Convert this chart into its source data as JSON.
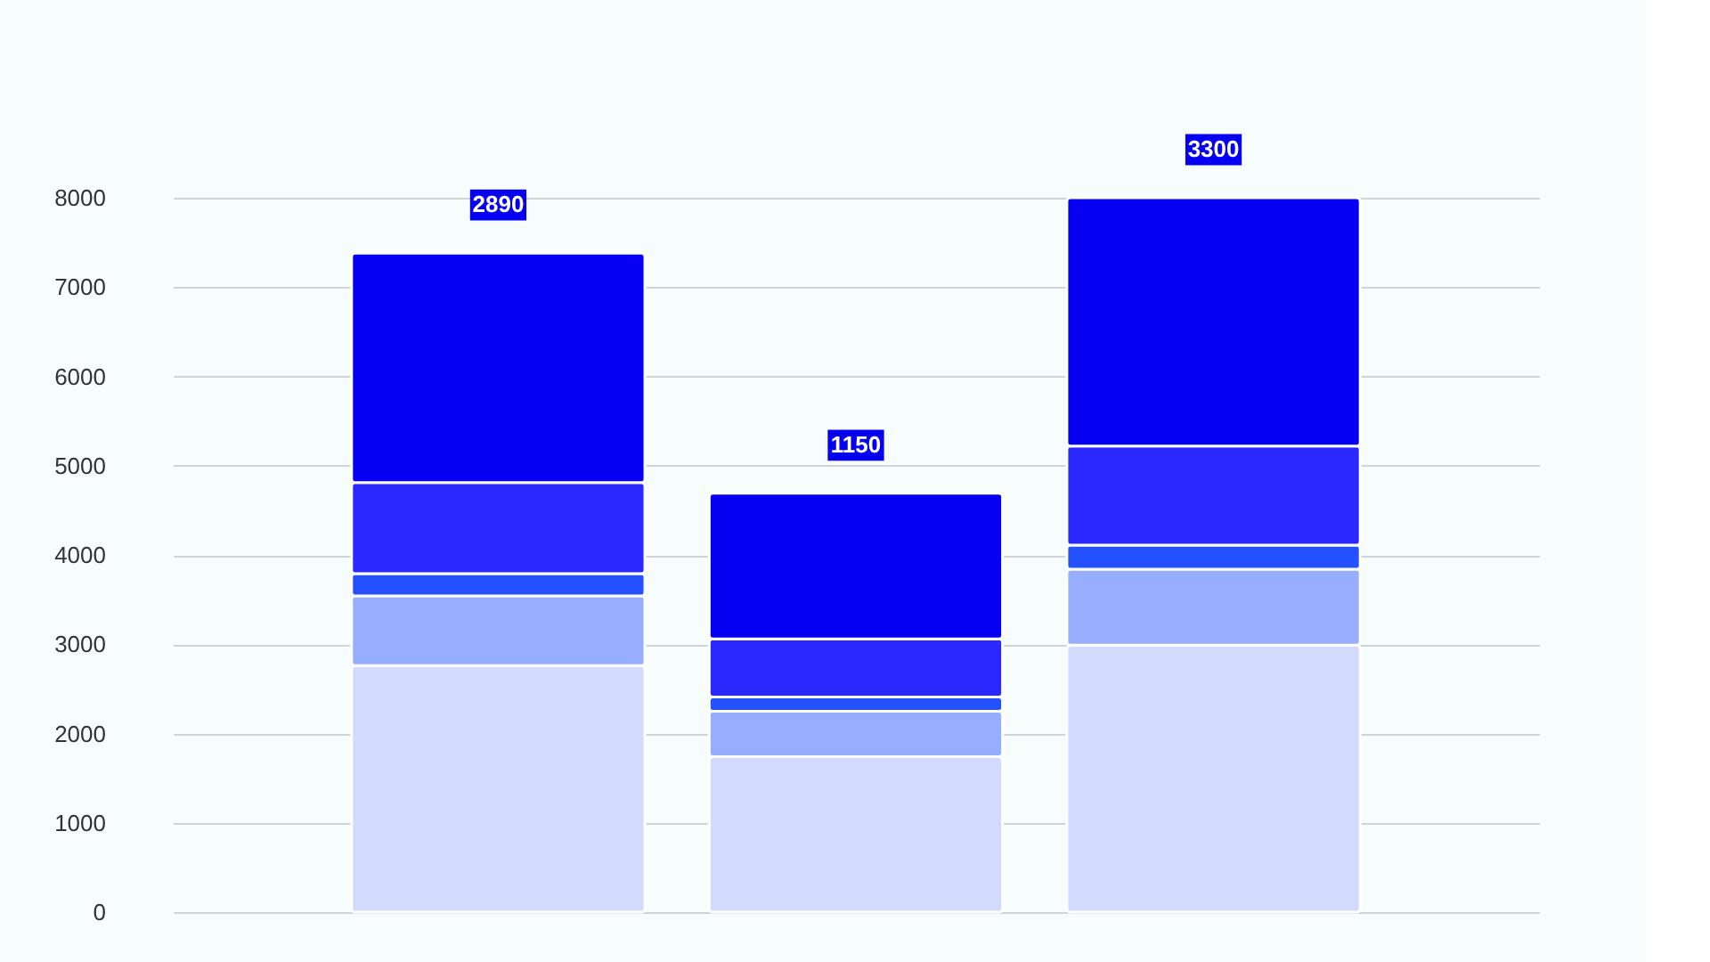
{
  "chart_data": {
    "type": "bar",
    "stacked": true,
    "categories": [
      null,
      null,
      null
    ],
    "series": [
      {
        "color": "#d2dbfe",
        "values": [
          2760,
          1740,
          2990
        ]
      },
      {
        "color": "#97aefe",
        "values": [
          780,
          510,
          850
        ]
      },
      {
        "color": "#2450fe",
        "values": [
          250,
          160,
          270
        ]
      },
      {
        "color": "#2b28ff",
        "values": [
          1020,
          650,
          1110
        ]
      },
      {
        "color": "#0500f2",
        "values": [
          2570,
          1630,
          2780
        ]
      }
    ],
    "ylim": [
      0,
      8000
    ],
    "yticks": [
      0,
      1000,
      2000,
      3000,
      4000,
      5000,
      6000,
      7000,
      8000
    ],
    "grid": "y",
    "tick_labels": "y",
    "annotations": [
      {
        "text": "2890",
        "y": 7380
      },
      {
        "text": "1150",
        "y": 4690
      },
      {
        "text": "3300",
        "y": 8000
      }
    ]
  }
}
